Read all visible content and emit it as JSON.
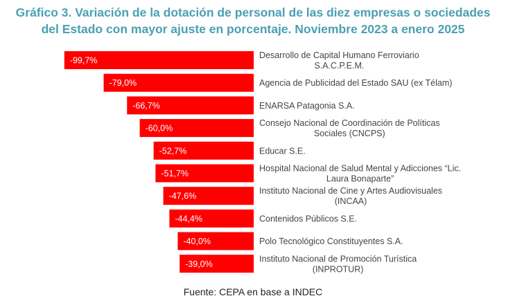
{
  "chart_data": {
    "type": "bar",
    "orientation": "horizontal",
    "title_lines": [
      "Gráfico 3. Variación de la dotación de personal de las diez empresas o sociedades",
      "del Estado con mayor ajuste en porcentaje. Noviembre 2023 a enero 2025"
    ],
    "categories": [
      [
        "Desarrollo de Capital Humano Ferroviario",
        "S.A.C.P.E.M."
      ],
      [
        "Agencia de Publicidad del Estado SAU (ex Télam)"
      ],
      [
        "ENARSA Patagonia S.A."
      ],
      [
        "Consejo Nacional de Coordinación de Políticas",
        "Sociales (CNCPS)"
      ],
      [
        "Educar S.E."
      ],
      [
        "Hospital Nacional de Salud Mental y Adicciones “Lic.",
        "Laura Bonaparte”"
      ],
      [
        "Instituto Nacional de Cine y Artes Audiovisuales",
        "(INCAA)"
      ],
      [
        "Contenidos Públicos S.E."
      ],
      [
        "Polo Tecnológico Constituyentes S.A."
      ],
      [
        "Instituto Nacional de Promoción Turística",
        "(INPROTUR)"
      ]
    ],
    "values": [
      -99.7,
      -79.0,
      -66.7,
      -60.0,
      -52.7,
      -51.7,
      -47.6,
      -44.4,
      -40.0,
      -39.0
    ],
    "data_labels": [
      "-99,7%",
      "-79,0%",
      "-66,7%",
      "-60,0%",
      "-52,7%",
      "-51,7%",
      "-47,6%",
      "-44,4%",
      "-40,0%",
      "-39,0%"
    ],
    "bar_color": "#ff0000",
    "title_color": "#4aa0b3",
    "grid": false,
    "legend": "none"
  },
  "source": "Fuente: CEPA en base a INDEC"
}
